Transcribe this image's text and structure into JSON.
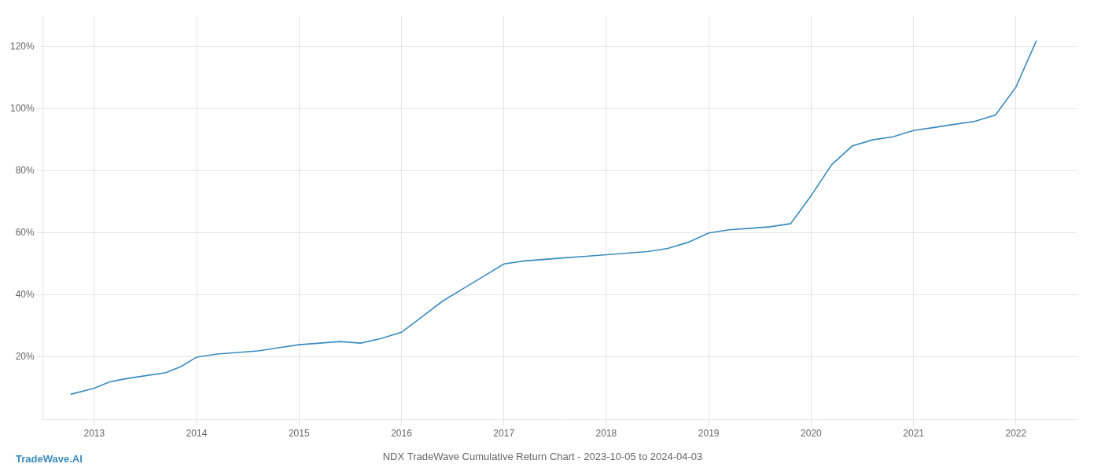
{
  "chart_data": {
    "type": "line",
    "title": "NDX TradeWave Cumulative Return Chart - 2023-10-05 to 2024-04-03",
    "x": [
      2012.77,
      2013.0,
      2013.15,
      2013.3,
      2013.5,
      2013.7,
      2013.85,
      2014.0,
      2014.2,
      2014.4,
      2014.6,
      2014.8,
      2015.0,
      2015.2,
      2015.4,
      2015.6,
      2015.8,
      2016.0,
      2016.2,
      2016.4,
      2016.6,
      2016.8,
      2017.0,
      2017.2,
      2017.4,
      2017.6,
      2017.8,
      2018.0,
      2018.2,
      2018.4,
      2018.6,
      2018.8,
      2019.0,
      2019.2,
      2019.4,
      2019.6,
      2019.8,
      2020.0,
      2020.2,
      2020.4,
      2020.6,
      2020.8,
      2021.0,
      2021.2,
      2021.4,
      2021.6,
      2021.8,
      2022.0,
      2022.2
    ],
    "values": [
      8,
      10,
      12,
      13,
      14,
      15,
      17,
      20,
      21,
      21.5,
      22,
      23,
      24,
      24.5,
      25,
      24.5,
      26,
      28,
      33,
      38,
      42,
      46,
      50,
      51,
      51.5,
      52,
      52.5,
      53,
      53.5,
      54,
      55,
      57,
      60,
      61,
      61.5,
      62,
      63,
      72,
      82,
      88,
      90,
      91,
      93,
      94,
      95,
      96,
      98,
      107,
      122
    ],
    "color": "#3a8bbf",
    "xlim": [
      2012.5,
      2022.6
    ],
    "xticks": [
      2013,
      2014,
      2015,
      2016,
      2017,
      2018,
      2019,
      2020,
      2021,
      2022
    ],
    "ylim": [
      0,
      130
    ],
    "yticks": [
      {
        "value": 20,
        "label": "20%"
      },
      {
        "value": 40,
        "label": "40%"
      },
      {
        "value": 60,
        "label": "60%"
      },
      {
        "value": 80,
        "label": "80%"
      },
      {
        "value": 100,
        "label": "100%"
      },
      {
        "value": 120,
        "label": "120%"
      }
    ],
    "grid": true,
    "annotations": [
      {
        "text": "TradeWave.AI",
        "color": "#3a8bbf"
      }
    ]
  }
}
